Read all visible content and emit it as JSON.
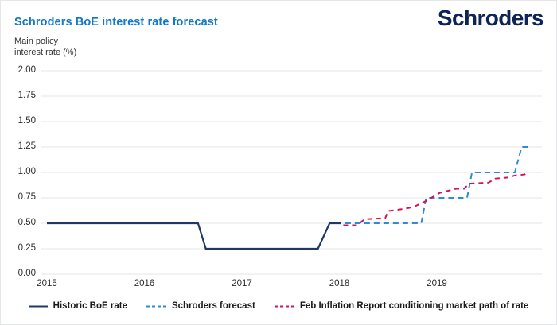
{
  "page": {
    "title": "Schroders BoE interest rate forecast",
    "logo": "Schroders",
    "y_axis_label_line1": "Main policy",
    "y_axis_label_line2": "interest rate (%)"
  },
  "colors": {
    "title_blue": "#1478c8",
    "logo_navy": "#0e2356",
    "historic_navy": "#1f3864",
    "forecast_blue": "#2e8bd4",
    "market_path_red": "#d41356",
    "gridline": "#e4e4e4",
    "axis_text": "#2e2e2e",
    "legend_text": "#1a1a1a",
    "background": "#ffffff",
    "border": "#e4e6e8"
  },
  "chart_data": {
    "type": "line",
    "title": "Schroders BoE interest rate forecast",
    "ylabel": "Main policy interest rate (%)",
    "xlabel": "",
    "ylim": [
      0,
      2.0
    ],
    "xlim": [
      2014.93,
      2020.15
    ],
    "yticks": [
      2.0,
      1.75,
      1.5,
      1.25,
      1.0,
      0.75,
      0.5,
      0.25,
      0.0
    ],
    "ytick_labels": [
      "2.00",
      "1.75",
      "1.50",
      "1.25",
      "1.00",
      "0.75",
      "0.50",
      "0.25",
      "0.00"
    ],
    "xticks": [
      2015,
      2016,
      2017,
      2018,
      2019
    ],
    "grid": "horizontal",
    "legend_position": "bottom",
    "series": [
      {
        "name": "Historic BoE rate",
        "style": "solid",
        "color_key": "historic_navy",
        "points": [
          [
            2015.0,
            0.5
          ],
          [
            2016.55,
            0.5
          ],
          [
            2016.63,
            0.25
          ],
          [
            2017.78,
            0.25
          ],
          [
            2017.9,
            0.5
          ],
          [
            2018.02,
            0.5
          ]
        ]
      },
      {
        "name": "Schroders forecast",
        "style": "dashed",
        "color_key": "forecast_blue",
        "points": [
          [
            2018.06,
            0.5
          ],
          [
            2018.84,
            0.5
          ],
          [
            2018.89,
            0.75
          ],
          [
            2019.31,
            0.75
          ],
          [
            2019.36,
            1.0
          ],
          [
            2019.8,
            1.0
          ],
          [
            2019.87,
            1.25
          ],
          [
            2019.95,
            1.25
          ]
        ]
      },
      {
        "name": "Feb Inflation Report conditioning market path of rate",
        "style": "dashed",
        "color_key": "market_path_red",
        "points": [
          [
            2018.04,
            0.48
          ],
          [
            2018.18,
            0.48
          ],
          [
            2018.26,
            0.54
          ],
          [
            2018.47,
            0.55
          ],
          [
            2018.5,
            0.62
          ],
          [
            2018.65,
            0.64
          ],
          [
            2018.76,
            0.66
          ],
          [
            2018.89,
            0.72
          ],
          [
            2019.03,
            0.8
          ],
          [
            2019.2,
            0.84
          ],
          [
            2019.28,
            0.84
          ],
          [
            2019.33,
            0.89
          ],
          [
            2019.53,
            0.9
          ],
          [
            2019.6,
            0.94
          ],
          [
            2019.73,
            0.95
          ],
          [
            2019.8,
            0.97
          ],
          [
            2019.9,
            0.98
          ],
          [
            2019.94,
            1.0
          ]
        ]
      }
    ]
  },
  "legend": {
    "items": [
      {
        "label": "Historic BoE rate",
        "swatch": "solid-line",
        "color_key": "historic_navy"
      },
      {
        "label": "Schroders forecast",
        "swatch": "dashed-line",
        "color_key": "forecast_blue"
      },
      {
        "label": "Feb Inflation Report conditioning market path of rate",
        "swatch": "dashed-line",
        "color_key": "market_path_red"
      }
    ]
  }
}
